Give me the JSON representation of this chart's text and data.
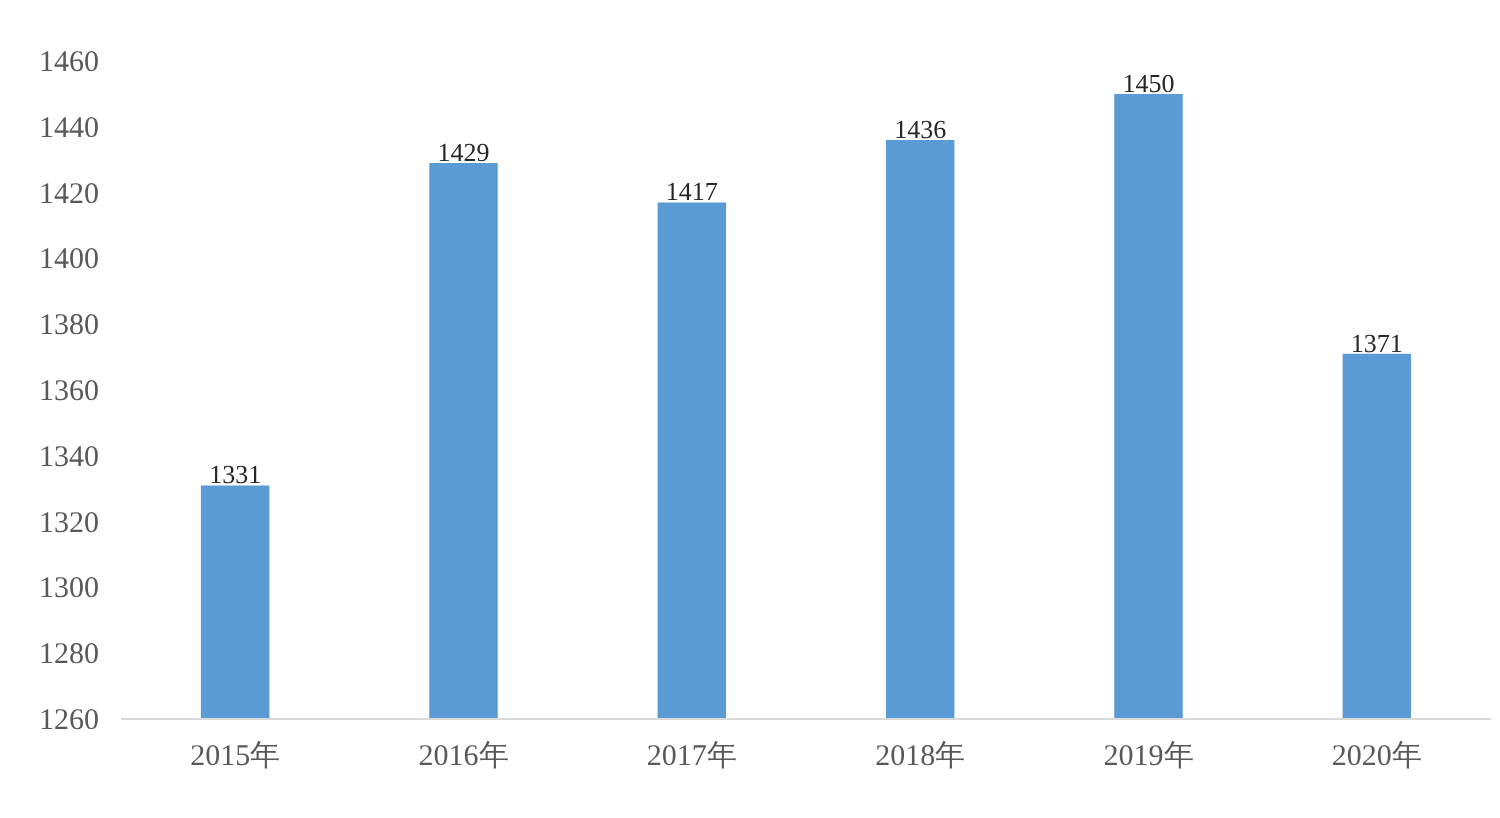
{
  "chart_data": {
    "type": "bar",
    "categories": [
      "2015年",
      "2016年",
      "2017年",
      "2018年",
      "2019年",
      "2020年"
    ],
    "values": [
      1331,
      1429,
      1417,
      1436,
      1450,
      1371
    ],
    "color": "#5b9bd5",
    "ylim": [
      1260,
      1460
    ],
    "yticks": [
      1260,
      1280,
      1300,
      1320,
      1340,
      1360,
      1380,
      1400,
      1420,
      1440,
      1460
    ],
    "data_labels": true,
    "grid": false
  }
}
